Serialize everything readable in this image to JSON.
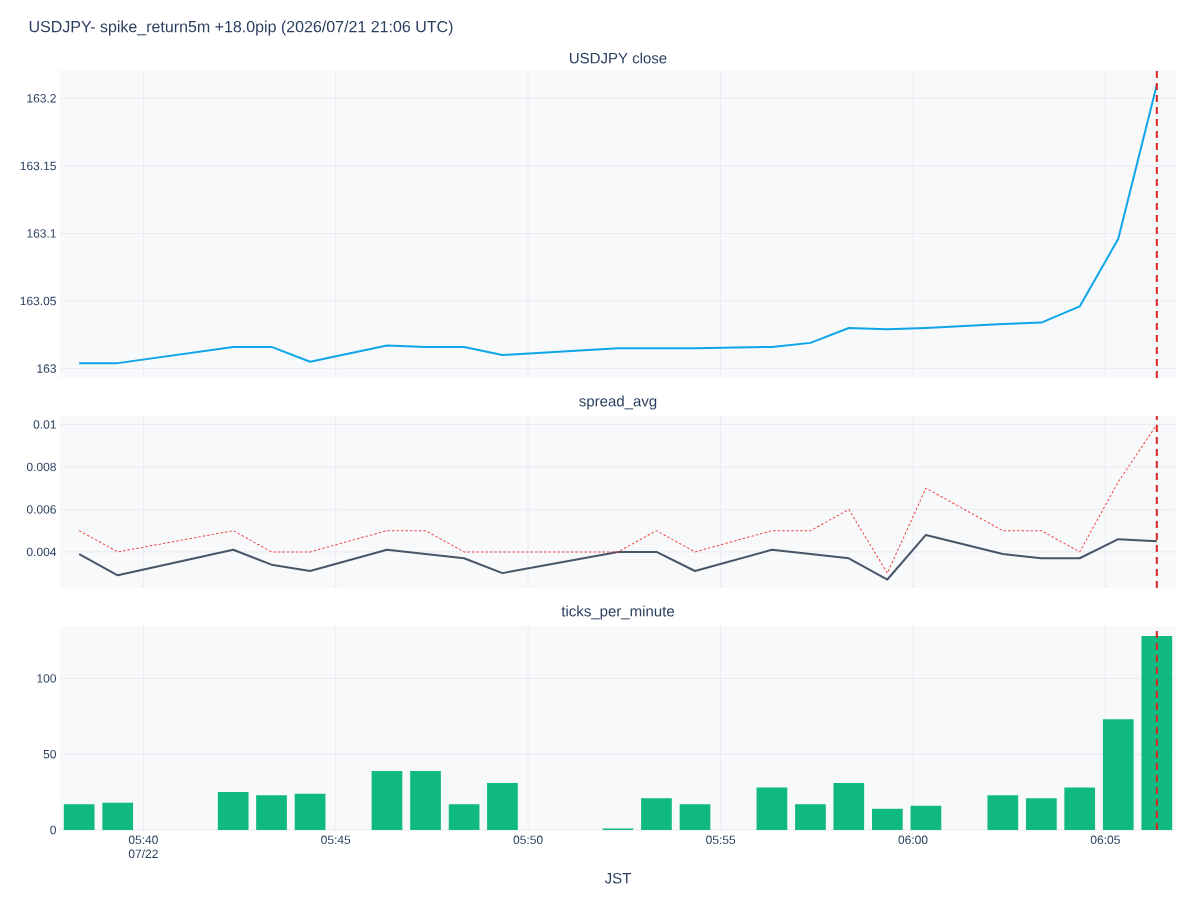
{
  "chart_data": [
    {
      "type": "line",
      "title": "USDJPY- spike_return5m +18.0pip (2026/07/21 21:06 UTC)",
      "subtitle": "USDJPY close",
      "x": [
        5.6389,
        5.6556,
        5.7056,
        5.7222,
        5.7389,
        5.7722,
        5.7889,
        5.8056,
        5.8222,
        5.8722,
        5.8889,
        5.9056,
        5.9389,
        5.9556,
        5.9722,
        5.9889,
        6.0056,
        6.0389,
        6.0556,
        6.0722,
        6.0889,
        6.1056
      ],
      "series": [
        {
          "color": "#0ea5e9",
          "values": [
            163.004,
            163.004,
            163.016,
            163.016,
            163.005,
            163.017,
            163.016,
            163.016,
            163.01,
            163.015,
            163.015,
            163.015,
            163.016,
            163.019,
            163.03,
            163.029,
            163.03,
            163.033,
            163.034,
            163.046,
            163.096,
            163.21
          ]
        }
      ],
      "xlim": [
        5.6306,
        6.1139
      ],
      "xticks": [
        {
          "value": 5.6667,
          "label": null
        },
        {
          "value": 5.75,
          "label": null
        },
        {
          "value": 5.8333,
          "label": null
        },
        {
          "value": 5.9167,
          "label": null
        },
        {
          "value": 6.0,
          "label": null
        },
        {
          "value": 6.0833,
          "label": null
        }
      ],
      "ylim": [
        162.993,
        163.221
      ],
      "yticks": [
        163,
        163.05,
        163.1,
        163.15,
        163.2
      ],
      "grid": true,
      "tick_labels": "y",
      "ref_lines": [
        {
          "axis": "x",
          "value": 6.1056,
          "color": "#dc2626",
          "line_style": "dashed"
        }
      ]
    },
    {
      "type": "line",
      "title": "spread_avg",
      "x": [
        5.6389,
        5.6556,
        5.7056,
        5.7222,
        5.7389,
        5.7722,
        5.7889,
        5.8056,
        5.8222,
        5.8722,
        5.8889,
        5.9056,
        5.9389,
        5.9556,
        5.9722,
        5.9889,
        6.0056,
        6.0389,
        6.0556,
        6.0722,
        6.0889,
        6.1056
      ],
      "series": [
        {
          "color": "#475569",
          "line_style": "solid",
          "values": [
            0.0039,
            0.0029,
            0.0041,
            0.0034,
            0.0031,
            0.0041,
            0.0039,
            0.0037,
            0.003,
            0.004,
            0.004,
            0.0031,
            0.0041,
            0.0039,
            0.0037,
            0.0027,
            0.0048,
            0.0039,
            0.0037,
            0.0037,
            0.0046,
            0.0045
          ]
        },
        {
          "color": "#ef4444",
          "line_style": "dotted",
          "values": [
            0.005,
            0.004,
            0.005,
            0.004,
            0.004,
            0.005,
            0.005,
            0.004,
            0.004,
            0.004,
            0.005,
            0.004,
            0.005,
            0.005,
            0.006,
            0.003,
            0.007,
            0.005,
            0.005,
            0.004,
            0.0073,
            0.01
          ]
        }
      ],
      "xlim": [
        5.6306,
        6.1139
      ],
      "xticks": [
        {
          "value": 5.6667,
          "label": null
        },
        {
          "value": 5.75,
          "label": null
        },
        {
          "value": 5.8333,
          "label": null
        },
        {
          "value": 5.9167,
          "label": null
        },
        {
          "value": 6.0,
          "label": null
        },
        {
          "value": 6.0833,
          "label": null
        }
      ],
      "ylim": [
        0.0023,
        0.0104
      ],
      "yticks": [
        0.004,
        0.006,
        0.008,
        0.01
      ],
      "grid": true,
      "tick_labels": "y",
      "ref_lines": [
        {
          "axis": "x",
          "value": 6.1056,
          "color": "#dc2626",
          "line_style": "dashed"
        }
      ]
    },
    {
      "type": "bar",
      "title": "ticks_per_minute",
      "xlabel": "JST",
      "x": [
        5.6389,
        5.6556,
        5.7056,
        5.7222,
        5.7389,
        5.7722,
        5.7889,
        5.8056,
        5.8222,
        5.8722,
        5.8889,
        5.9056,
        5.9389,
        5.9556,
        5.9722,
        5.9889,
        6.0056,
        6.0389,
        6.0556,
        6.0722,
        6.0889,
        6.1056
      ],
      "series": [
        {
          "color": "#10b981",
          "values": [
            17,
            18,
            25,
            23,
            24,
            39,
            39,
            17,
            31,
            1,
            21,
            17,
            28,
            17,
            31,
            14,
            16,
            23,
            21,
            28,
            73,
            128
          ]
        }
      ],
      "xlim": [
        5.6306,
        6.1139
      ],
      "xticks": [
        {
          "value": 5.6667,
          "label": "05:40 07/22"
        },
        {
          "value": 5.75,
          "label": "05:45"
        },
        {
          "value": 5.8333,
          "label": "05:50"
        },
        {
          "value": 5.9167,
          "label": "05:55"
        },
        {
          "value": 6.0,
          "label": "06:00"
        },
        {
          "value": 6.0833,
          "label": "06:05"
        }
      ],
      "ylim": [
        0,
        134.6
      ],
      "yticks": [
        0,
        50,
        100
      ],
      "grid": true,
      "ref_lines": [
        {
          "axis": "x",
          "value": 6.1056,
          "color": "#dc2626",
          "line_style": "dashed"
        }
      ]
    }
  ]
}
